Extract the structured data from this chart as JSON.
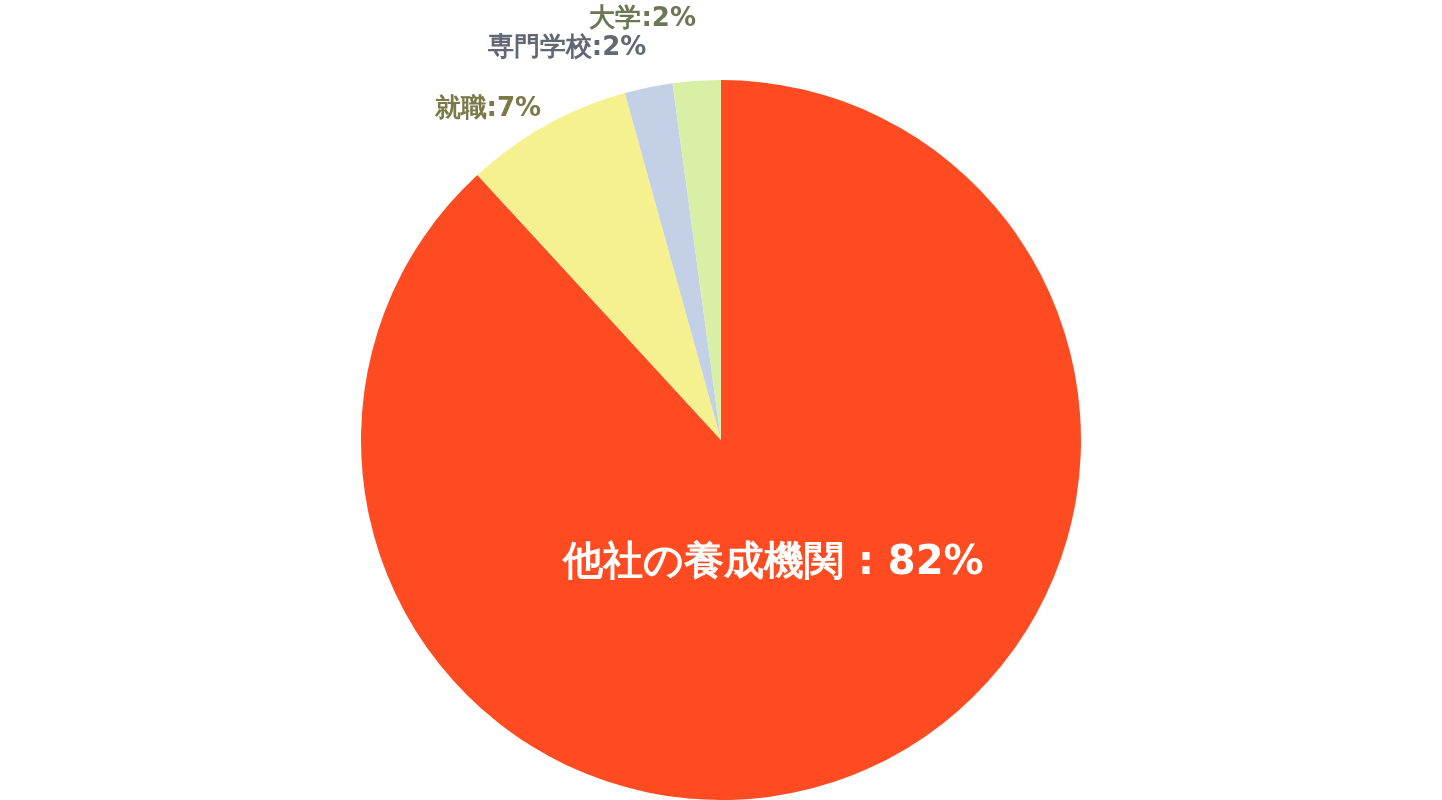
{
  "chart_data": {
    "type": "pie",
    "categories": [
      "他社の養成機関",
      "就職",
      "専門学校",
      "大学"
    ],
    "values": [
      82,
      7,
      2,
      2
    ],
    "colors": [
      "#ff4b22",
      "#f6f18f",
      "#c3d0e6",
      "#d8f0a6"
    ],
    "value_labels": [
      "82%",
      "7%",
      "2%",
      "2%"
    ]
  }
}
